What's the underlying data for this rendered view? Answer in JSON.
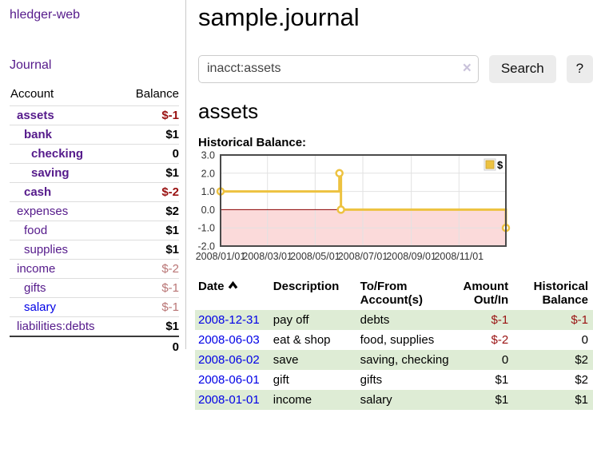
{
  "colors": {
    "link_purple": "#551a8b",
    "link_blue": "#0000e6",
    "negative_strong": "#991111",
    "negative_soft": "#b97575",
    "row_stripe_green": "#deecd5",
    "series_yellow": "#edc240",
    "negative_region_pink": "#fbdada",
    "zero_line_red": "#8b0000",
    "chart_border": "#4a4a4a"
  },
  "sidebar": {
    "app_title": "hledger-web",
    "journal_link": "Journal",
    "accounts_table": {
      "headers": {
        "account": "Account",
        "balance": "Balance"
      },
      "rows": [
        {
          "name": "assets",
          "balance": "$-1",
          "indent": 0,
          "bold": true,
          "balance_style": "neg-strong",
          "link_color": "purple"
        },
        {
          "name": "bank",
          "balance": "$1",
          "indent": 1,
          "bold": true,
          "balance_style": "pos",
          "link_color": "purple"
        },
        {
          "name": "checking",
          "balance": "0",
          "indent": 2,
          "bold": true,
          "balance_style": "pos",
          "link_color": "purple"
        },
        {
          "name": "saving",
          "balance": "$1",
          "indent": 2,
          "bold": true,
          "balance_style": "pos",
          "link_color": "purple"
        },
        {
          "name": "cash",
          "balance": "$-2",
          "indent": 1,
          "bold": true,
          "balance_style": "neg-strong",
          "link_color": "purple"
        },
        {
          "name": "expenses",
          "balance": "$2",
          "indent": 0,
          "bold": false,
          "balance_style": "pos",
          "link_color": "purple"
        },
        {
          "name": "food",
          "balance": "$1",
          "indent": 1,
          "bold": false,
          "balance_style": "pos",
          "link_color": "purple"
        },
        {
          "name": "supplies",
          "balance": "$1",
          "indent": 1,
          "bold": false,
          "balance_style": "pos",
          "link_color": "purple"
        },
        {
          "name": "income",
          "balance": "$-2",
          "indent": 0,
          "bold": false,
          "balance_style": "neg-soft",
          "link_color": "purple"
        },
        {
          "name": "gifts",
          "balance": "$-1",
          "indent": 1,
          "bold": false,
          "balance_style": "neg-soft",
          "link_color": "purple"
        },
        {
          "name": "salary",
          "balance": "$-1",
          "indent": 1,
          "bold": false,
          "balance_style": "neg-soft",
          "link_color": "blue"
        },
        {
          "name": "liabilities:debts",
          "balance": "$1",
          "indent": 0,
          "bold": false,
          "balance_style": "pos",
          "link_color": "purple"
        }
      ],
      "total": "0"
    }
  },
  "header": {
    "title": "sample.journal"
  },
  "search": {
    "value": "inacct:assets",
    "clear_icon": "×",
    "button_label": "Search",
    "help_label": "?"
  },
  "account_page": {
    "heading": "assets",
    "chart_label": "Historical Balance:"
  },
  "chart_data": {
    "type": "line",
    "step": true,
    "title": "Historical Balance",
    "series": [
      {
        "name": "$",
        "color": "#edc240",
        "points": [
          [
            "2008-01-01",
            1
          ],
          [
            "2008-06-01",
            2
          ],
          [
            "2008-06-03",
            0
          ],
          [
            "2008-12-31",
            -1
          ]
        ]
      }
    ],
    "x_ticks": [
      {
        "label": "2008/01/01",
        "date": "2008-01-01"
      },
      {
        "label": "2008/03/01",
        "date": "2008-03-01"
      },
      {
        "label": "2008/05/01",
        "date": "2008-05-01"
      },
      {
        "label": "2008/07/01",
        "date": "2008-07-01"
      },
      {
        "label": "2008/09/01",
        "date": "2008-09-01"
      },
      {
        "label": "2008/11/01",
        "date": "2008-11-01"
      }
    ],
    "y_ticks": [
      {
        "label": "3.0",
        "value": 3
      },
      {
        "label": "2.0",
        "value": 2
      },
      {
        "label": "1.0",
        "value": 1
      },
      {
        "label": "0.0",
        "value": 0
      },
      {
        "label": "-1.0",
        "value": -1
      },
      {
        "label": "-2.0",
        "value": -2
      }
    ],
    "ylim": [
      -2,
      3
    ],
    "xlim_dates": [
      "2008-01-01",
      "2008-12-31"
    ],
    "grid": true,
    "legend": [
      {
        "label": "$",
        "color": "#edc240"
      }
    ],
    "legend_position": "top-right"
  },
  "transactions": {
    "headers": {
      "date": "Date",
      "description": "Description",
      "account": "To/From Account(s)",
      "amount": "Amount Out/In",
      "balance": "Historical Balance"
    },
    "sort": {
      "column": "date",
      "direction": "ascending"
    },
    "rows": [
      {
        "date": "2008-12-31",
        "description": "pay off",
        "accounts": "debts",
        "amount": "$-1",
        "amount_neg": true,
        "balance": "$-1",
        "balance_neg": true
      },
      {
        "date": "2008-06-03",
        "description": "eat & shop",
        "accounts": "food, supplies",
        "amount": "$-2",
        "amount_neg": true,
        "balance": "0",
        "balance_neg": false
      },
      {
        "date": "2008-06-02",
        "description": "save",
        "accounts": "saving, checking",
        "amount": "0",
        "amount_neg": false,
        "balance": "$2",
        "balance_neg": false
      },
      {
        "date": "2008-06-01",
        "description": "gift",
        "accounts": "gifts",
        "amount": "$1",
        "amount_neg": false,
        "balance": "$2",
        "balance_neg": false
      },
      {
        "date": "2008-01-01",
        "description": "income",
        "accounts": "salary",
        "amount": "$1",
        "amount_neg": false,
        "balance": "$1",
        "balance_neg": false
      }
    ]
  }
}
